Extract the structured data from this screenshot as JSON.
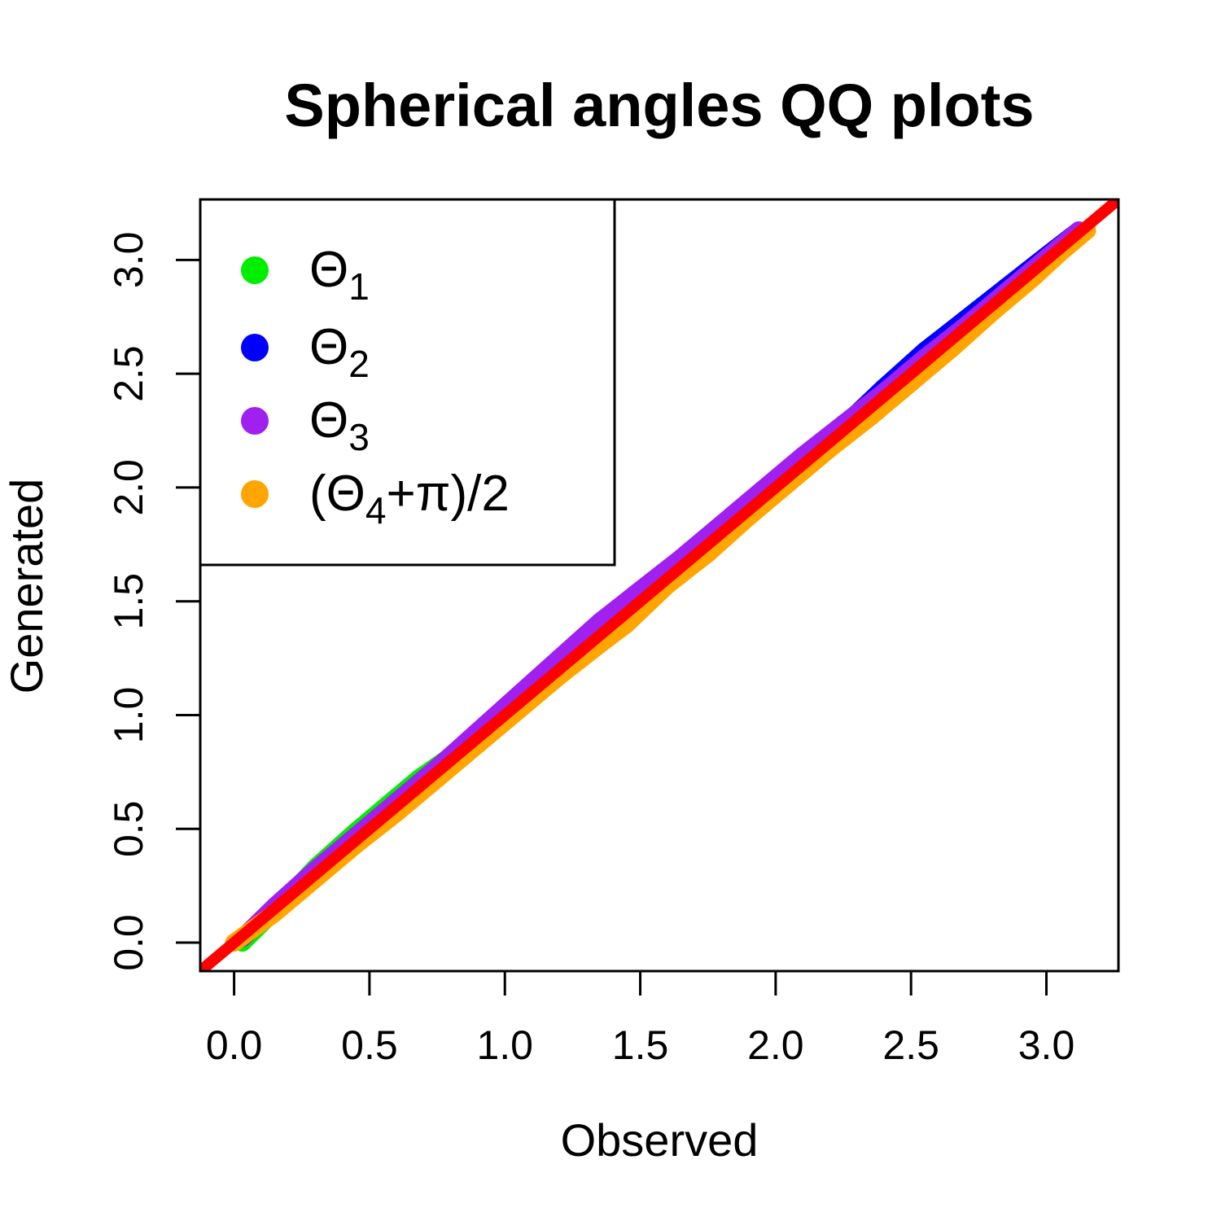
{
  "chart_data": {
    "type": "scatter",
    "title": "Spherical angles QQ plots",
    "xlabel": "Observed",
    "ylabel": "Generated",
    "xlim": [
      -0.125,
      3.266
    ],
    "ylim": [
      -0.125,
      3.266
    ],
    "x_ticks": [
      0.0,
      0.5,
      1.0,
      1.5,
      2.0,
      2.5,
      3.0
    ],
    "y_ticks": [
      0.0,
      0.5,
      1.0,
      1.5,
      2.0,
      2.5,
      3.0
    ],
    "x_tick_labels": [
      "0.0",
      "0.5",
      "1.0",
      "1.5",
      "2.0",
      "2.5",
      "3.0"
    ],
    "y_tick_labels": [
      "0.0",
      "0.5",
      "1.0",
      "1.5",
      "2.0",
      "2.5",
      "3.0"
    ],
    "grid": false,
    "legend_position": "top-left",
    "reference_line": {
      "description": "y = x",
      "color": "#ff0000",
      "from": [
        -0.125,
        -0.125
      ],
      "to": [
        3.266,
        3.266
      ]
    },
    "series": [
      {
        "name": "Θ1",
        "color": "#00ee00",
        "x": [
          0.03,
          0.15,
          0.3,
          0.45,
          0.55,
          0.68,
          0.8,
          0.95,
          1.1,
          1.25,
          1.4,
          1.55,
          1.7,
          1.85,
          2.0,
          2.15,
          2.3,
          2.45,
          2.6,
          2.75,
          2.9,
          3.0,
          3.1
        ],
        "y": [
          0.0,
          0.14,
          0.33,
          0.49,
          0.59,
          0.72,
          0.82,
          0.96,
          1.1,
          1.25,
          1.4,
          1.55,
          1.7,
          1.86,
          1.98,
          2.15,
          2.29,
          2.45,
          2.57,
          2.72,
          2.88,
          3.02,
          3.11
        ]
      },
      {
        "name": "Θ2",
        "color": "#0000ff",
        "x": [
          0.03,
          0.15,
          0.3,
          0.45,
          0.6,
          0.75,
          0.9,
          1.05,
          1.2,
          1.35,
          1.5,
          1.65,
          1.8,
          1.95,
          2.1,
          2.25,
          2.4,
          2.55,
          2.7,
          2.85,
          3.0,
          3.12
        ],
        "y": [
          0.02,
          0.15,
          0.31,
          0.46,
          0.62,
          0.77,
          0.92,
          1.07,
          1.23,
          1.38,
          1.53,
          1.68,
          1.82,
          1.97,
          2.12,
          2.27,
          2.44,
          2.6,
          2.74,
          2.88,
          3.02,
          3.13
        ]
      },
      {
        "name": "Θ3",
        "color": "#a020f0",
        "x": [
          0.03,
          0.15,
          0.3,
          0.45,
          0.6,
          0.75,
          0.9,
          1.05,
          1.2,
          1.35,
          1.5,
          1.65,
          1.8,
          1.95,
          2.1,
          2.25,
          2.4,
          2.55,
          2.7,
          2.85,
          3.0,
          3.12
        ],
        "y": [
          0.02,
          0.16,
          0.32,
          0.47,
          0.62,
          0.77,
          0.93,
          1.09,
          1.25,
          1.41,
          1.55,
          1.69,
          1.84,
          1.99,
          2.14,
          2.28,
          2.42,
          2.57,
          2.71,
          2.86,
          3.01,
          3.13
        ]
      },
      {
        "name": "(Θ4+π)/2",
        "color": "#ffa500",
        "x": [
          0.0,
          0.15,
          0.3,
          0.45,
          0.6,
          0.75,
          0.9,
          1.05,
          1.2,
          1.35,
          1.45,
          1.6,
          1.75,
          1.9,
          2.05,
          2.2,
          2.35,
          2.5,
          2.65,
          2.8,
          2.95,
          3.05,
          3.15
        ],
        "y": [
          0.0,
          0.13,
          0.28,
          0.43,
          0.57,
          0.72,
          0.87,
          1.02,
          1.17,
          1.31,
          1.4,
          1.57,
          1.71,
          1.87,
          2.02,
          2.17,
          2.31,
          2.46,
          2.61,
          2.77,
          2.92,
          3.03,
          3.13
        ]
      }
    ]
  },
  "legend": {
    "items": [
      {
        "color": "#00ee00",
        "main": "Θ",
        "sub": "1",
        "after": "",
        "before": ""
      },
      {
        "color": "#0000ff",
        "main": "Θ",
        "sub": "2",
        "after": "",
        "before": ""
      },
      {
        "color": "#a020f0",
        "main": "Θ",
        "sub": "3",
        "after": "",
        "before": ""
      },
      {
        "color": "#ffa500",
        "main": "Θ",
        "sub": "4",
        "after": "+π)/2",
        "before": "("
      }
    ]
  }
}
